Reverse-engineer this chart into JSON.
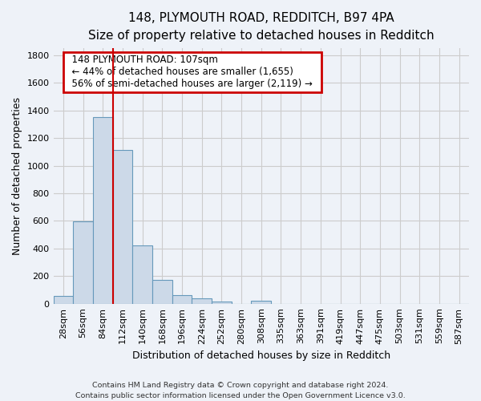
{
  "title_line1": "148, PLYMOUTH ROAD, REDDITCH, B97 4PA",
  "title_line2": "Size of property relative to detached houses in Redditch",
  "xlabel": "Distribution of detached houses by size in Redditch",
  "ylabel": "Number of detached properties",
  "footnote": "Contains HM Land Registry data © Crown copyright and database right 2024.\nContains public sector information licensed under the Open Government Licence v3.0.",
  "bin_labels": [
    "28sqm",
    "56sqm",
    "84sqm",
    "112sqm",
    "140sqm",
    "168sqm",
    "196sqm",
    "224sqm",
    "252sqm",
    "280sqm",
    "308sqm",
    "335sqm",
    "363sqm",
    "391sqm",
    "419sqm",
    "447sqm",
    "475sqm",
    "503sqm",
    "531sqm",
    "559sqm",
    "587sqm"
  ],
  "bar_heights": [
    55,
    595,
    1350,
    1115,
    425,
    170,
    60,
    38,
    15,
    0,
    20,
    0,
    0,
    0,
    0,
    0,
    0,
    0,
    0,
    0,
    0
  ],
  "bar_color": "#ccd9e8",
  "bar_edge_color": "#6699bb",
  "annotation_text_line1": "148 PLYMOUTH ROAD: 107sqm",
  "annotation_text_line2": "← 44% of detached houses are smaller (1,655)",
  "annotation_text_line3": "56% of semi-detached houses are larger (2,119) →",
  "annotation_box_facecolor": "#ffffff",
  "annotation_box_edgecolor": "#cc0000",
  "red_line_color": "#cc0000",
  "red_line_x": 2.5,
  "ylim": [
    0,
    1850
  ],
  "yticks": [
    0,
    200,
    400,
    600,
    800,
    1000,
    1200,
    1400,
    1600,
    1800
  ],
  "grid_color": "#cccccc",
  "background_color": "#eef2f8",
  "plot_background_color": "#eef2f8",
  "title1_fontsize": 11,
  "title2_fontsize": 9,
  "ylabel_fontsize": 9,
  "xlabel_fontsize": 9,
  "tick_fontsize": 8,
  "annot_fontsize": 8.5,
  "footnote_fontsize": 6.8
}
